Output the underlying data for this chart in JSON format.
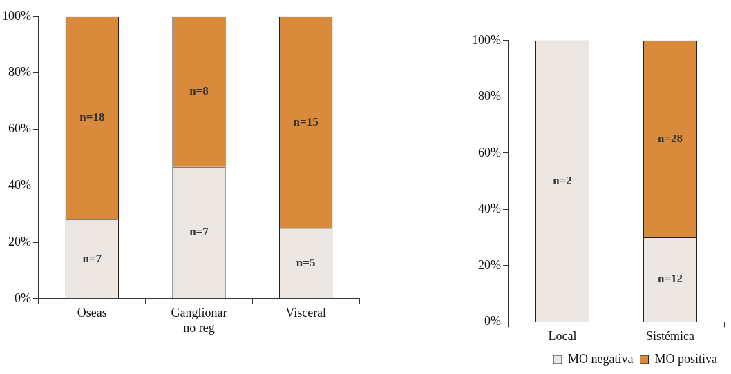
{
  "chart_data": [
    {
      "type": "bar",
      "stacked": true,
      "categories": [
        "Oseas",
        "Ganglionar no reg",
        "Visceral"
      ],
      "ylim": [
        0,
        100
      ],
      "yticks": [
        {
          "value": 0,
          "label": "0%"
        },
        {
          "value": 20,
          "label": "20%"
        },
        {
          "value": 40,
          "label": "40%"
        },
        {
          "value": 60,
          "label": "60%"
        },
        {
          "value": 80,
          "label": "80%"
        },
        {
          "value": 100,
          "label": "100%"
        }
      ],
      "grid": false,
      "legend": false,
      "series": [
        {
          "color": "#ece7e2",
          "values": [
            28,
            46.7,
            25
          ]
        },
        {
          "color": "#d98a3a",
          "values": [
            72,
            53.3,
            75
          ]
        }
      ],
      "annotations": [
        "n=7",
        "n=7",
        "n=5",
        "n=18",
        "n=8",
        "n=15"
      ]
    },
    {
      "type": "bar",
      "stacked": true,
      "categories": [
        "Local",
        "Sistémica"
      ],
      "ylim": [
        0,
        100
      ],
      "yticks": [
        {
          "value": 0,
          "label": "0%"
        },
        {
          "value": 20,
          "label": "20%"
        },
        {
          "value": 40,
          "label": "40%"
        },
        {
          "value": 60,
          "label": "60%"
        },
        {
          "value": 80,
          "label": "80%"
        },
        {
          "value": 100,
          "label": "100%"
        }
      ],
      "grid": false,
      "legend": "bottom right",
      "series": [
        {
          "name": "MO negativa",
          "color": "#ece7e2",
          "values": [
            100,
            30
          ]
        },
        {
          "name": "MO positiva",
          "color": "#d98a3a",
          "values": [
            0,
            70
          ]
        }
      ],
      "annotations": [
        "n=2",
        "n=12",
        "n=28"
      ]
    }
  ]
}
